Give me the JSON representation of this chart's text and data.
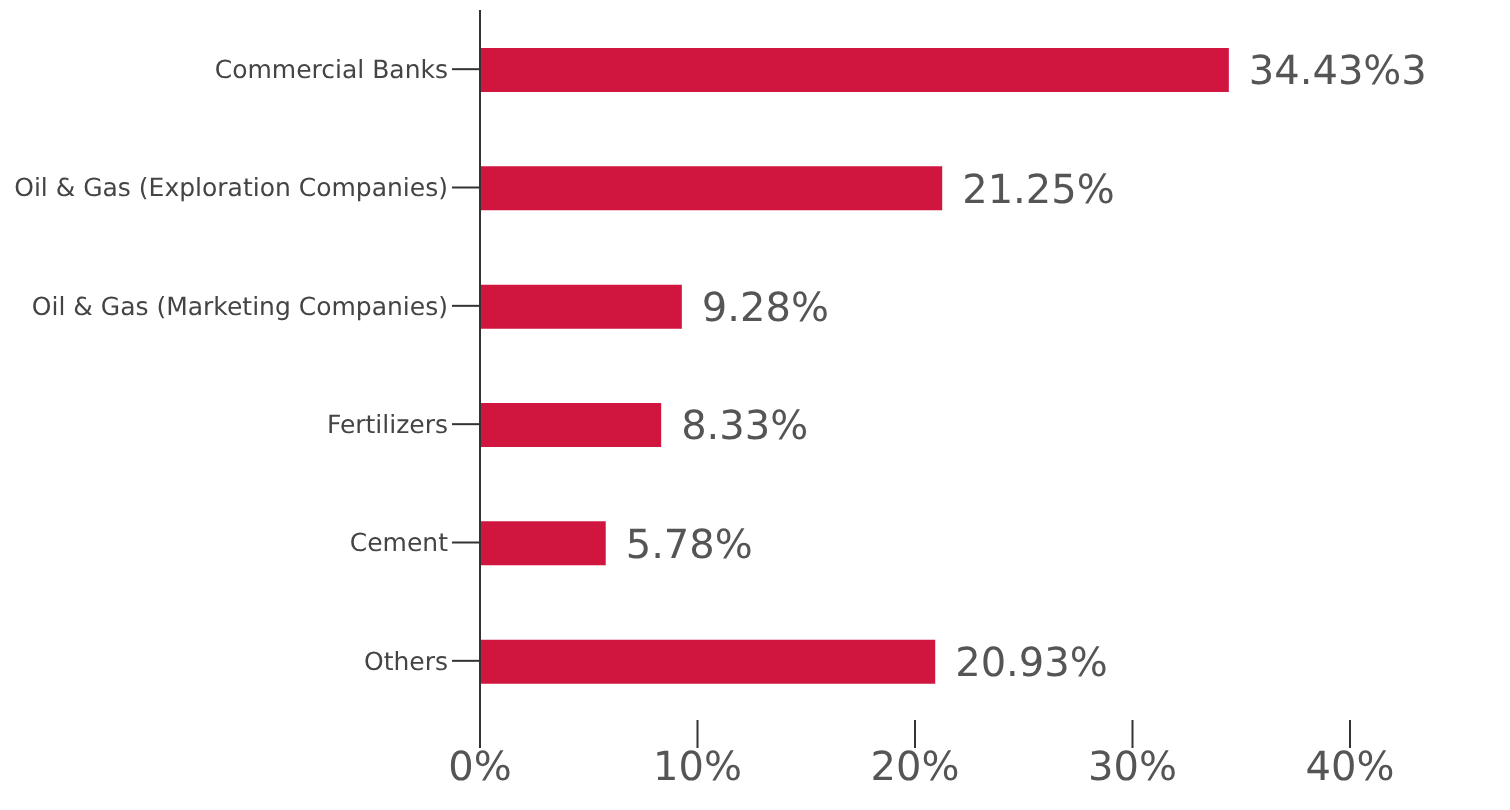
{
  "chart_data": {
    "type": "bar",
    "orientation": "horizontal",
    "categories": [
      "Commercial Banks",
      "Oil & Gas (Exploration Companies)",
      "Oil & Gas (Marketing Companies)",
      "Fertilizers",
      "Cement",
      "Others"
    ],
    "values": [
      34.43,
      21.25,
      9.28,
      8.33,
      5.78,
      20.93
    ],
    "value_labels": [
      "34.43%3",
      "21.25%",
      "9.28%",
      "8.33%",
      "5.78%",
      "20.93%"
    ],
    "color": "#d0163f",
    "xlim": [
      0,
      40
    ],
    "xticks": [
      {
        "value": 0,
        "label": "0%"
      },
      {
        "value": 10,
        "label": "10%"
      },
      {
        "value": 20,
        "label": "20%"
      },
      {
        "value": 30,
        "label": "30%"
      },
      {
        "value": 40,
        "label": "40%"
      }
    ],
    "grid": false,
    "legend": false
  }
}
